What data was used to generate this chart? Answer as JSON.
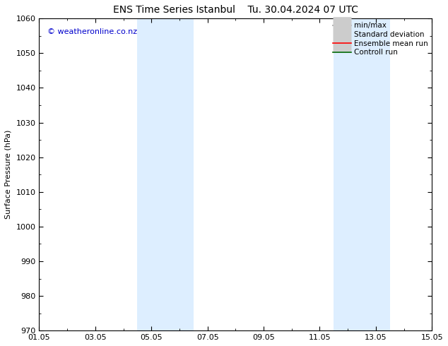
{
  "title": "ENS Time Series Istanbul",
  "title2": "Tu. 30.04.2024 07 UTC",
  "ylabel": "Surface Pressure (hPa)",
  "ylim": [
    970,
    1060
  ],
  "yticks": [
    970,
    980,
    990,
    1000,
    1010,
    1020,
    1030,
    1040,
    1050,
    1060
  ],
  "xtick_labels": [
    "01.05",
    "03.05",
    "05.05",
    "07.05",
    "09.05",
    "11.05",
    "13.05",
    "15.05"
  ],
  "xtick_positions": [
    0,
    2,
    4,
    6,
    8,
    10,
    12,
    14
  ],
  "xlim": [
    0,
    14
  ],
  "shaded_bands": [
    {
      "x_start": 3.5,
      "x_end": 5.5
    },
    {
      "x_start": 10.5,
      "x_end": 12.5
    }
  ],
  "shaded_color": "#ddeeff",
  "copyright_text": "© weatheronline.co.nz",
  "copyright_color": "#0000cc",
  "legend_items": [
    {
      "label": "min/max",
      "color": "#999999",
      "lw": 1.2,
      "ls": "-"
    },
    {
      "label": "Standard deviation",
      "color": "#cccccc",
      "lw": 7,
      "ls": "-"
    },
    {
      "label": "Ensemble mean run",
      "color": "#ff0000",
      "lw": 1.2,
      "ls": "-"
    },
    {
      "label": "Controll run",
      "color": "#006600",
      "lw": 1.2,
      "ls": "-"
    }
  ],
  "background_color": "#ffffff",
  "spine_color": "#000000",
  "tick_color": "#000000",
  "title_fontsize": 10,
  "axis_label_fontsize": 8,
  "tick_fontsize": 8,
  "copyright_fontsize": 8,
  "legend_fontsize": 7.5
}
